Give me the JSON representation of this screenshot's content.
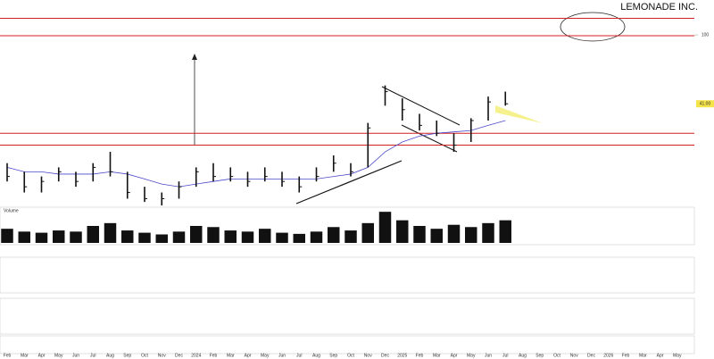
{
  "chart_data": [
    {
      "type": "ohlc",
      "title": "LEMONADE INC.",
      "log_scale": true,
      "categories": [
        "Feb",
        "Mar",
        "Apr",
        "May",
        "Jun",
        "Jul",
        "Aug",
        "Sep",
        "Oct",
        "Nov",
        "Dec",
        "2024",
        "Feb",
        "Mar",
        "Apr",
        "May",
        "Jun",
        "Jul",
        "Aug",
        "Sep",
        "Oct",
        "Nov",
        "Dec",
        "2025",
        "Feb",
        "Mar",
        "Apr",
        "May",
        "Jun",
        "Jul",
        "Aug",
        "Sep",
        "Oct",
        "Nov",
        "Dec",
        "2026",
        "Feb",
        "Mar",
        "Apr",
        "May"
      ],
      "high": [
        19,
        17,
        16,
        18,
        17,
        19,
        22,
        17,
        14,
        13,
        15,
        18,
        19,
        18,
        17,
        18,
        17,
        16,
        18,
        21,
        19,
        32,
        52,
        44,
        36,
        33,
        28,
        34,
        45,
        48,
        null,
        null,
        null,
        null,
        null,
        null,
        null,
        null,
        null,
        null
      ],
      "low": [
        15,
        13,
        13,
        15,
        14,
        15,
        16,
        12,
        11.5,
        11,
        12,
        14,
        15,
        15,
        14,
        15,
        14,
        13,
        15,
        17,
        16,
        18,
        40,
        33,
        29,
        27,
        22,
        25,
        33,
        40,
        null,
        null,
        null,
        null,
        null,
        null,
        null,
        null,
        null,
        null
      ],
      "close": [
        16,
        14,
        15,
        17,
        15,
        18,
        17,
        13,
        12,
        12,
        14,
        17,
        16,
        16,
        15,
        16,
        15,
        14,
        16,
        19,
        17,
        30,
        48,
        38,
        31,
        28,
        24,
        33,
        42,
        41,
        null,
        null,
        null,
        null,
        null,
        null,
        null,
        null,
        null,
        null
      ],
      "value_labels": [
        null,
        null,
        null,
        null,
        null,
        null,
        null,
        null,
        null,
        null,
        null,
        null,
        null,
        null,
        null,
        null,
        null,
        null,
        null,
        null,
        null,
        null,
        null,
        null,
        null,
        null,
        null,
        null,
        null,
        "41.00",
        null,
        null,
        null,
        null,
        null,
        null,
        null,
        null,
        null,
        null
      ],
      "color": "#111111",
      "series": [
        {
          "name": "MA",
          "color": "#4a4ac8",
          "values": [
            18,
            17,
            17,
            16.5,
            16.5,
            16.5,
            17,
            16.5,
            15.5,
            14.5,
            14,
            14.5,
            15,
            15.5,
            15.5,
            15.5,
            15.5,
            15.5,
            15.5,
            16,
            16.5,
            18,
            22,
            25,
            27,
            28,
            28.5,
            29,
            31,
            33,
            null,
            null,
            null,
            null,
            null,
            null,
            null,
            null,
            null,
            null
          ]
        }
      ],
      "levels": [
        124,
        99,
        28,
        24
      ],
      "level_color": "#d42020",
      "ylim": [
        11,
        140
      ],
      "yticks": [
        100
      ]
    },
    {
      "type": "bar",
      "title": "Volume",
      "values": [
        25,
        20,
        18,
        22,
        20,
        30,
        35,
        22,
        18,
        15,
        20,
        30,
        28,
        22,
        20,
        25,
        18,
        16,
        20,
        28,
        22,
        35,
        55,
        40,
        30,
        25,
        32,
        28,
        35,
        40,
        null,
        null,
        null,
        null,
        null,
        null,
        null,
        null,
        null,
        null
      ],
      "color": "#111111",
      "ylim": [
        0,
        60
      ]
    }
  ]
}
